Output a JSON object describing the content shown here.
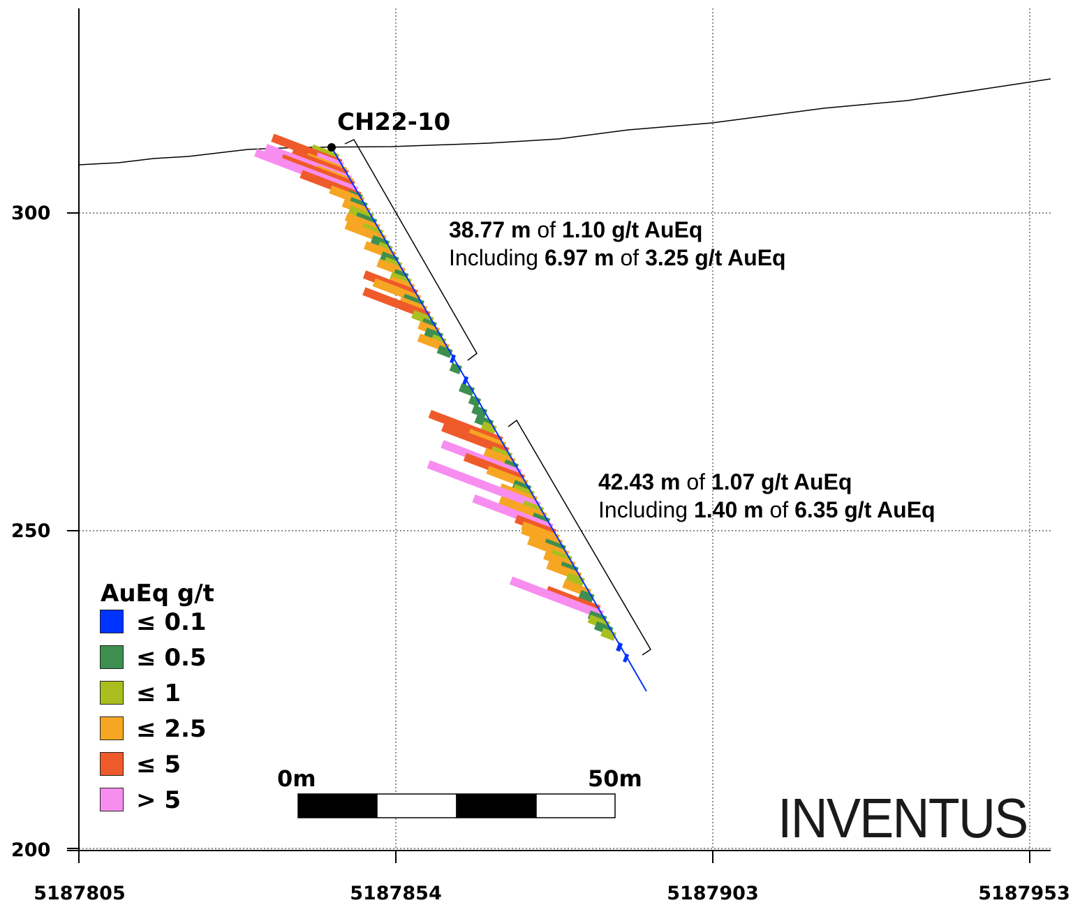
{
  "axes": {
    "y_ticks": [
      "300",
      "250",
      "200"
    ],
    "x_ticks": [
      "5187805",
      "5187854",
      "5187903",
      "5187953"
    ]
  },
  "drillhole": {
    "name": "CH22-10"
  },
  "intervals": [
    {
      "length": "38.77 m",
      "of": "of",
      "grade": "1.10 g/t AuEq",
      "including_word": "Including",
      "inc_length": "6.97 m",
      "inc_grade": "3.25 g/t AuEq"
    },
    {
      "length": "42.43 m",
      "of": "of",
      "grade": "1.07 g/t AuEq",
      "including_word": "Including",
      "inc_length": "1.40 m",
      "inc_grade": "6.35 g/t AuEq"
    }
  ],
  "legend": {
    "title": "AuEq g/t",
    "items": [
      {
        "label": "≤ 0.1",
        "color": "#0033ff"
      },
      {
        "label": "≤ 0.5",
        "color": "#3d8f4f"
      },
      {
        "label": "≤ 1",
        "color": "#aabf1f"
      },
      {
        "label": "≤ 2.5",
        "color": "#f6a623"
      },
      {
        "label": "≤ 5",
        "color": "#ef5a2a"
      },
      {
        "label": "> 5",
        "color": "#f88df0"
      }
    ]
  },
  "scale_bar": {
    "start_label": "0m",
    "end_label": "50m"
  },
  "logo": {
    "text": "INVENTUS"
  }
}
